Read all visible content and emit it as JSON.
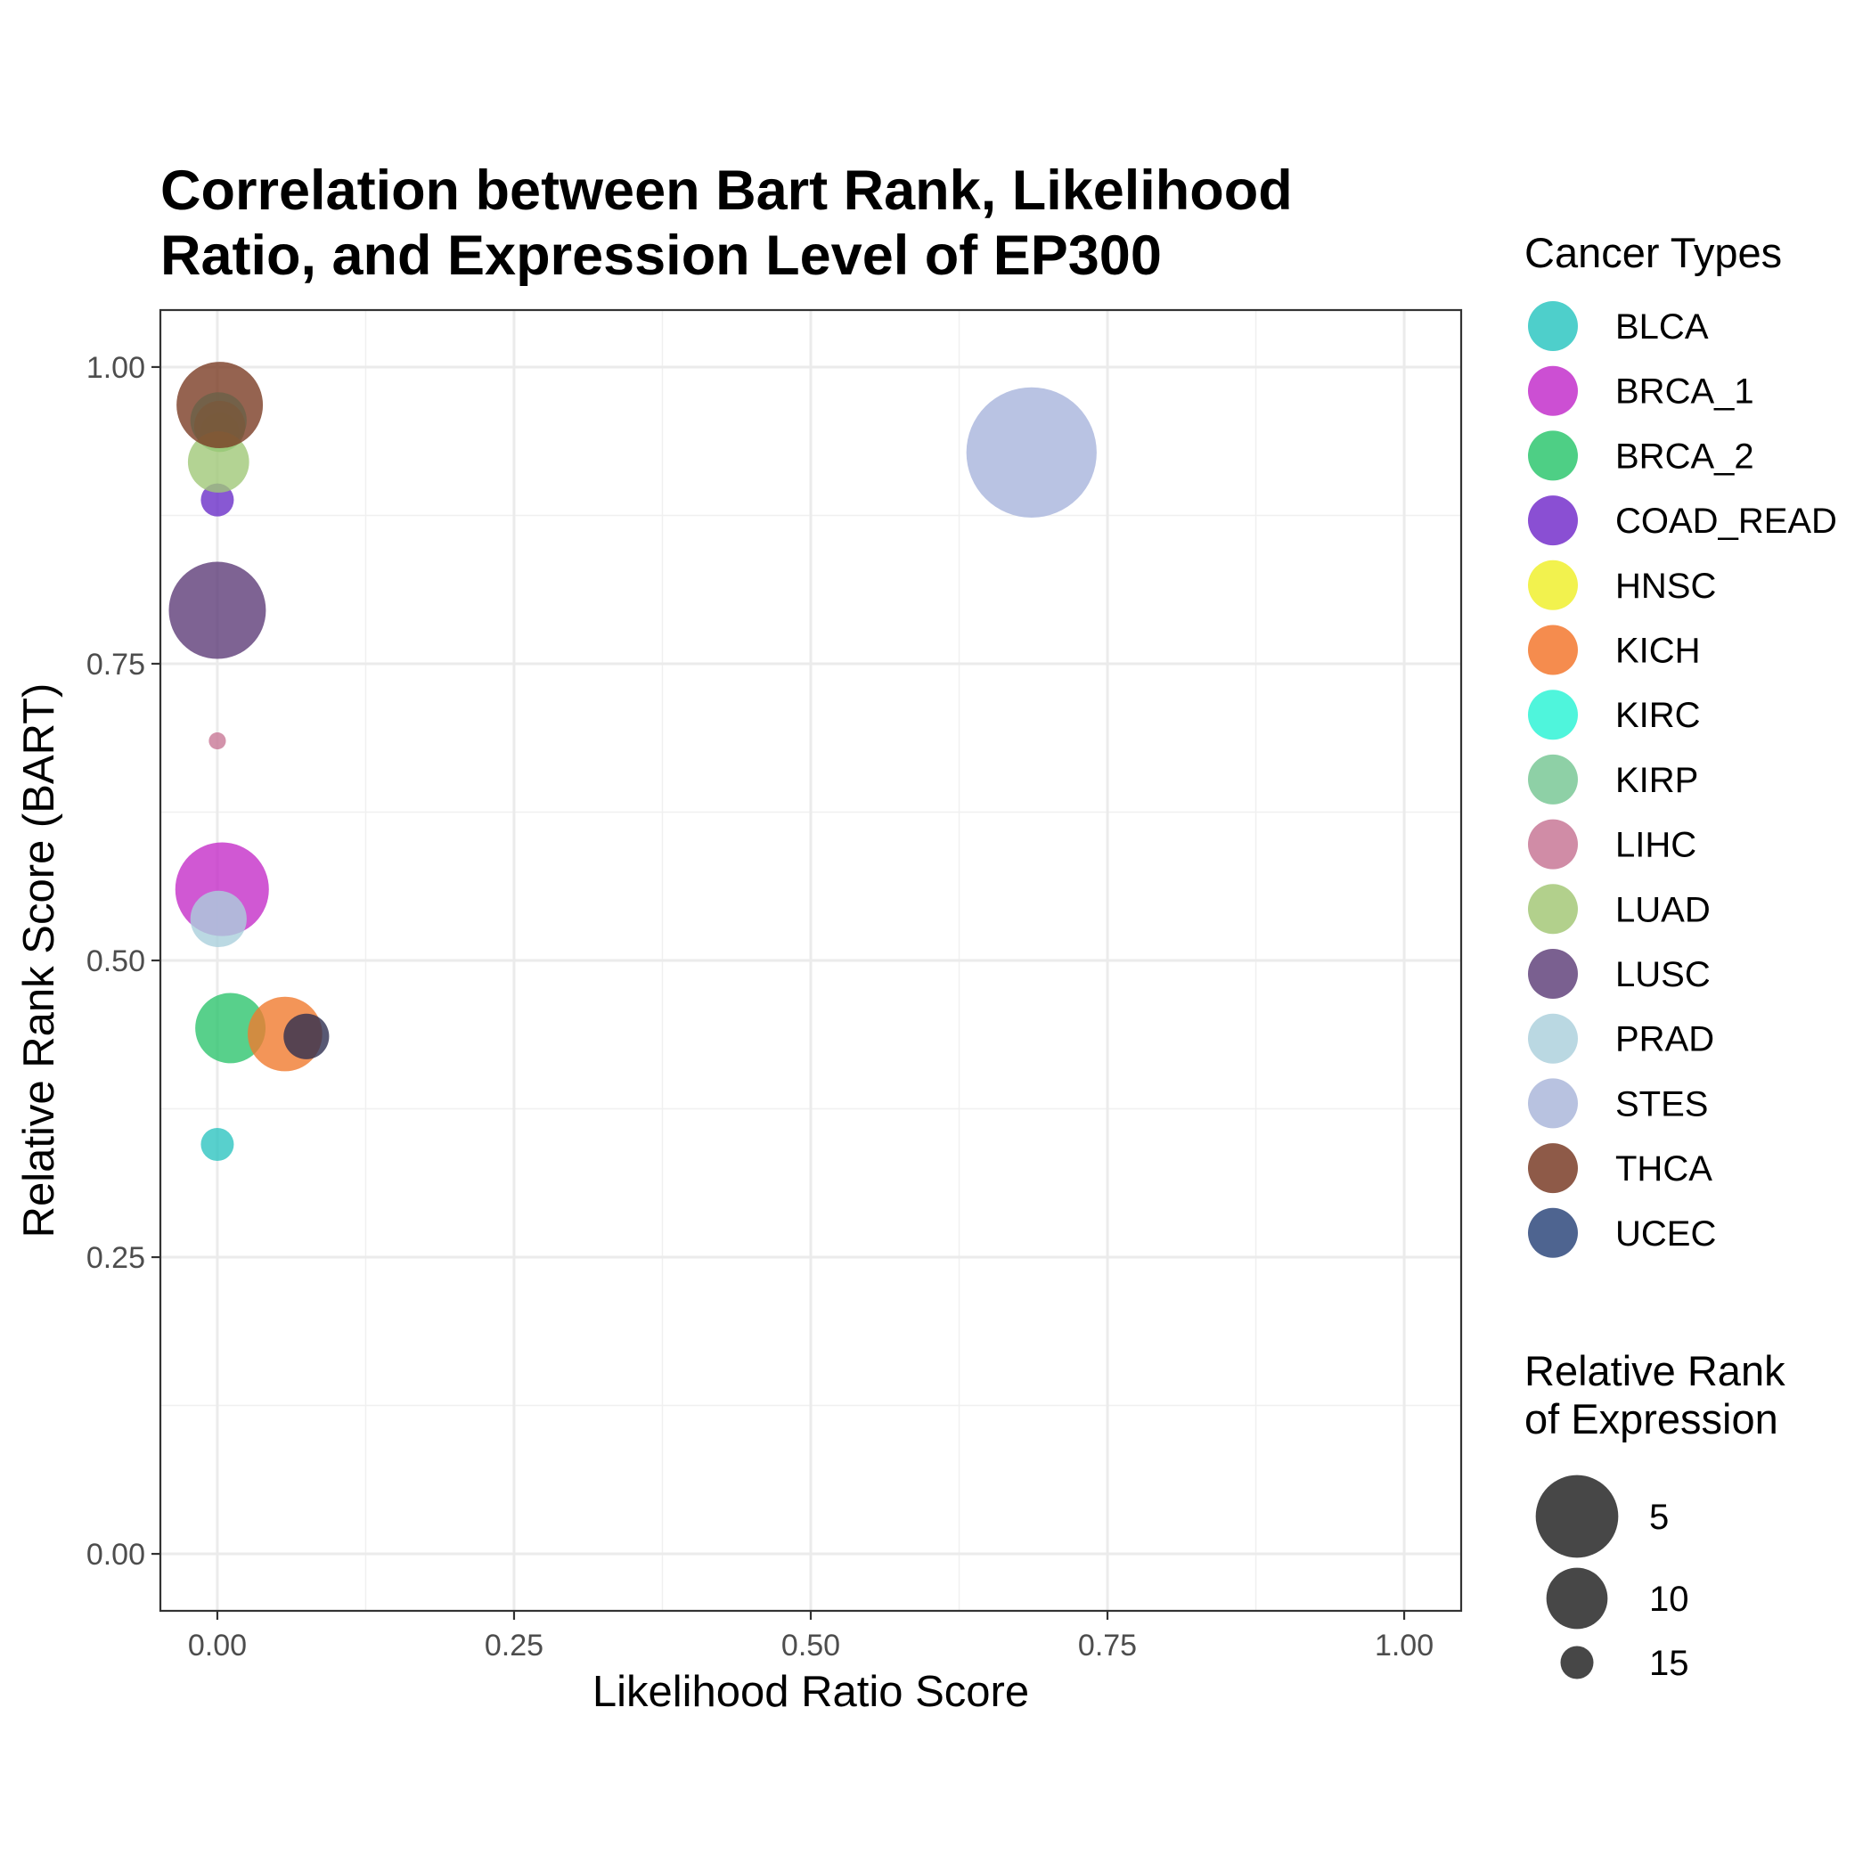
{
  "chart_data": {
    "type": "scatter",
    "title": "Correlation between Bart Rank, Likelihood Ratio, and Expression Level of EP300",
    "title_lines": [
      "Correlation between Bart Rank, Likelihood",
      "Ratio, and Expression Level of EP300"
    ],
    "xlabel": "Likelihood Ratio Score",
    "ylabel": "Relative Rank Score (BART)",
    "xlim": [
      -0.048,
      1.048
    ],
    "ylim": [
      -0.048,
      1.048
    ],
    "x_ticks": [
      0,
      0.25,
      0.5,
      0.75,
      1
    ],
    "x_tick_labels": [
      "0.00",
      "0.25",
      "0.50",
      "0.75",
      "1.00"
    ],
    "y_ticks": [
      0,
      0.25,
      0.5,
      0.75,
      1
    ],
    "y_tick_labels": [
      "0.00",
      "0.25",
      "0.50",
      "0.75",
      "1.00"
    ],
    "grid": true,
    "legend_position": "right",
    "color_legend_title": "Cancer Types",
    "size_legend_title_lines": [
      "Relative Rank",
      "of Expression"
    ],
    "size_legend": [
      {
        "label": "5",
        "value": 5
      },
      {
        "label": "10",
        "value": 10
      },
      {
        "label": "15",
        "value": 15
      }
    ],
    "series": [
      {
        "name": "BLCA",
        "color": "#2EC4C0",
        "x": 0.0,
        "y": 0.345,
        "size": 15
      },
      {
        "name": "BRCA_1",
        "color": "#C42EC8",
        "x": 0.004,
        "y": 0.56,
        "size": 2
      },
      {
        "name": "BRCA_2",
        "color": "#2EC46E",
        "x": 0.011,
        "y": 0.443,
        "size": 8
      },
      {
        "name": "COAD_READ",
        "color": "#6A2EC8",
        "x": 0.0,
        "y": 0.888,
        "size": 15
      },
      {
        "name": "HNSC",
        "color": "#EEF02E",
        "x": 0.002,
        "y": 0.945,
        "size": 14
      },
      {
        "name": "KICH",
        "color": "#F07A2E",
        "x": 0.057,
        "y": 0.438,
        "size": 7
      },
      {
        "name": "KIRC",
        "color": "#2EF0D2",
        "x": 0.001,
        "y": 0.955,
        "size": 11
      },
      {
        "name": "KIRP",
        "color": "#76C896",
        "x": 0.002,
        "y": 0.95,
        "size": 12
      },
      {
        "name": "LIHC",
        "color": "#C87896",
        "x": 0.0,
        "y": 0.685,
        "size": 17
      },
      {
        "name": "LUAD",
        "color": "#A0C878",
        "x": 0.001,
        "y": 0.92,
        "size": 10
      },
      {
        "name": "LUSC",
        "color": "#5E3C78",
        "x": 0.0,
        "y": 0.795,
        "size": 1
      },
      {
        "name": "PRAD",
        "color": "#AAD0DC",
        "x": 0.001,
        "y": 0.535,
        "size": 11
      },
      {
        "name": "STES",
        "color": "#A8B4DC",
        "x": 0.686,
        "y": 0.928,
        "size": -10
      },
      {
        "name": "THCA",
        "color": "#7A3C24",
        "x": 0.002,
        "y": 0.968,
        "size": 4
      },
      {
        "name": "UCEC",
        "color": "#2E2E50",
        "x": 0.075,
        "y": 0.436,
        "size": 13
      }
    ],
    "legend_colors": {
      "BLCA": "#4ECFCB",
      "BRCA_1": "#CC4FD3",
      "BRCA_2": "#4ECF85",
      "COAD_READ": "#8A4FD3",
      "HNSC": "#F2F24E",
      "KICH": "#F58C4E",
      "KIRC": "#4FF5DC",
      "KIRP": "#8ED0A6",
      "LIHC": "#D08CA6",
      "LUAD": "#B2D08C",
      "LUSC": "#7A6090",
      "PRAD": "#BAD8E2",
      "STES": "#B8C2E0",
      "THCA": "#8E5A48",
      "UCEC": "#4E6490"
    }
  }
}
